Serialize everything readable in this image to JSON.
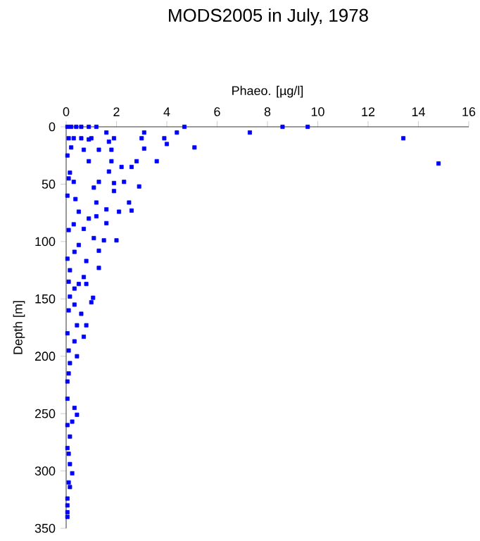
{
  "chart_data": {
    "type": "scatter",
    "title": "MODS2005 in July, 1978",
    "xlabel": "Phaeo. [µg/l]",
    "ylabel": "Depth [m]",
    "xlim": [
      0,
      16
    ],
    "xticks": [
      0,
      2,
      4,
      6,
      8,
      10,
      12,
      14,
      16
    ],
    "ylim": [
      350,
      0
    ],
    "yticks": [
      0,
      50,
      100,
      150,
      200,
      250,
      300,
      350
    ],
    "marker": "square",
    "grid": false,
    "series": [
      {
        "color": "#0000ff",
        "x": [
          0.05,
          0.2,
          0.4,
          0.6,
          0.9,
          1.2,
          4.7,
          8.6,
          9.6,
          7.3,
          1.6,
          3.1,
          4.4,
          0.1,
          0.3,
          0.6,
          0.9,
          1.0,
          1.9,
          3.0,
          3.9,
          13.4,
          1.7,
          4.0,
          5.1,
          3.1,
          0.2,
          0.7,
          1.3,
          1.8,
          0.9,
          1.8,
          2.8,
          3.6,
          14.8,
          2.2,
          2.6,
          1.7,
          0.15,
          0.3,
          1.3,
          1.9,
          2.3,
          2.9,
          1.9,
          1.1,
          0.37,
          1.2,
          2.5,
          2.6,
          2.1,
          1.6,
          0.5,
          0.9,
          1.2,
          1.6,
          0.3,
          0.7,
          2.0,
          1.5,
          1.1,
          0.5,
          1.3,
          0.33,
          0.8,
          1.3,
          0.15,
          0.7,
          0.33,
          1.0,
          0.15,
          1.07,
          0.8,
          0.5,
          0.33,
          0.6,
          0.43,
          0.8,
          0.33,
          0.7,
          0.43,
          0.15,
          0.05,
          0.05,
          0.33,
          0.43,
          0.24,
          0.15,
          0.05,
          0.15,
          0.24,
          0.15,
          0.05,
          0.05,
          0.05,
          0.05,
          0.1,
          0.05,
          0.1,
          0.05,
          0.1,
          0.1,
          0.05,
          0.1,
          0.1,
          0.05,
          0.1,
          0.1,
          0.05
        ],
        "values": [
          0,
          0,
          0,
          0,
          0,
          0,
          0,
          0,
          0,
          5,
          5,
          5,
          5,
          10,
          10,
          10,
          11,
          10,
          10,
          10,
          10,
          10,
          13,
          15,
          18,
          19,
          18,
          20,
          20,
          20,
          30,
          30,
          30,
          30,
          32,
          35,
          35,
          39,
          40,
          48,
          48,
          49,
          48,
          52,
          56,
          53,
          63,
          66,
          66,
          73,
          74,
          72,
          74,
          80,
          78,
          84,
          85,
          89,
          99,
          99,
          97,
          103,
          108,
          109,
          117,
          123,
          125,
          131,
          141,
          153,
          148,
          149,
          137,
          137,
          155,
          163,
          173,
          173,
          187,
          183,
          200,
          206,
          222,
          237,
          245,
          251,
          257,
          270,
          280,
          294,
          302,
          314,
          324,
          336,
          340,
          25,
          45,
          60,
          90,
          115,
          135,
          160,
          180,
          195,
          215,
          260,
          285,
          310,
          330
        ]
      }
    ]
  }
}
